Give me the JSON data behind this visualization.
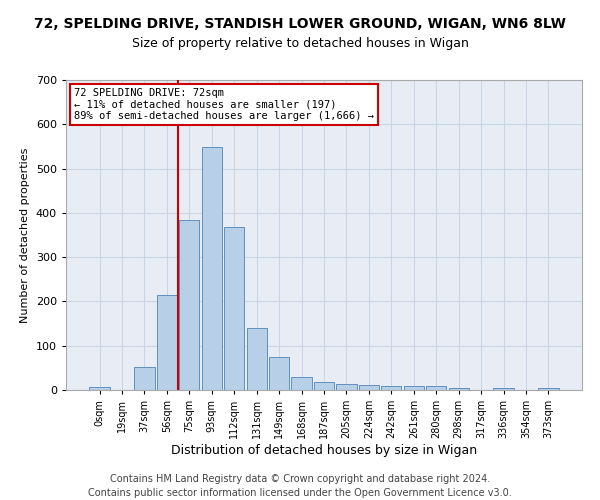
{
  "title": "72, SPELDING DRIVE, STANDISH LOWER GROUND, WIGAN, WN6 8LW",
  "subtitle": "Size of property relative to detached houses in Wigan",
  "xlabel": "Distribution of detached houses by size in Wigan",
  "ylabel": "Number of detached properties",
  "bar_labels": [
    "0sqm",
    "19sqm",
    "37sqm",
    "56sqm",
    "75sqm",
    "93sqm",
    "112sqm",
    "131sqm",
    "149sqm",
    "168sqm",
    "187sqm",
    "205sqm",
    "224sqm",
    "242sqm",
    "261sqm",
    "280sqm",
    "298sqm",
    "317sqm",
    "336sqm",
    "354sqm",
    "373sqm"
  ],
  "bar_values": [
    7,
    0,
    52,
    214,
    383,
    548,
    369,
    140,
    75,
    30,
    17,
    14,
    11,
    10,
    10,
    8,
    4,
    0,
    5,
    0,
    5
  ],
  "bar_color": "#b8cfe8",
  "bar_edge_color": "#6090c0",
  "vline_color": "#cc0000",
  "vline_x_index": 4,
  "annotation_text": "72 SPELDING DRIVE: 72sqm\n← 11% of detached houses are smaller (197)\n89% of semi-detached houses are larger (1,666) →",
  "annotation_box_color": "#cc0000",
  "ylim": [
    0,
    700
  ],
  "yticks": [
    0,
    100,
    200,
    300,
    400,
    500,
    600,
    700
  ],
  "grid_color": "#c8d4e8",
  "bg_color": "#e8edf5",
  "footnote": "Contains HM Land Registry data © Crown copyright and database right 2024.\nContains public sector information licensed under the Open Government Licence v3.0.",
  "title_fontsize": 10,
  "subtitle_fontsize": 9,
  "xlabel_fontsize": 9,
  "ylabel_fontsize": 8,
  "tick_fontsize": 8,
  "xtick_fontsize": 7,
  "footnote_fontsize": 7
}
